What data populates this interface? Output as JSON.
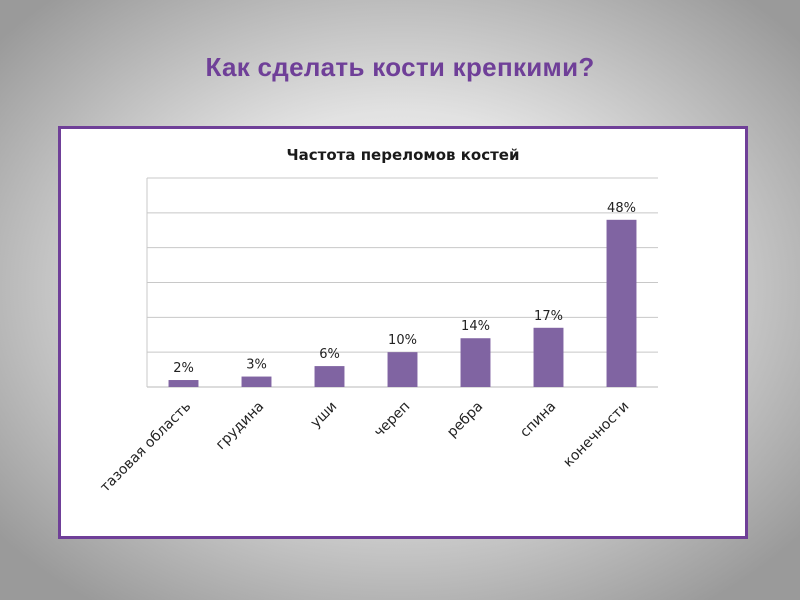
{
  "slide": {
    "title": "Как сделать кости крепкими?",
    "title_color": "#6f3f98"
  },
  "chart_data": {
    "type": "bar",
    "title": "Частота переломов костей",
    "categories": [
      "тазовая область",
      "грудина",
      "уши",
      "череп",
      "ребра",
      "спина",
      "конечности"
    ],
    "values": [
      2,
      3,
      6,
      10,
      14,
      17,
      48
    ],
    "data_labels": [
      "2%",
      "3%",
      "6%",
      "10%",
      "14%",
      "17%",
      "48%"
    ],
    "value_unit": "%",
    "ylim": [
      0,
      60
    ],
    "gridlines": [
      0,
      10,
      20,
      30,
      40,
      50,
      60
    ],
    "grid": true,
    "y_axis_labels_shown": false,
    "x_tick_rotation_deg": -45,
    "bar_color": "#8064a2",
    "frame_color": "#6f3f98",
    "grid_color": "#c8c8c8"
  }
}
